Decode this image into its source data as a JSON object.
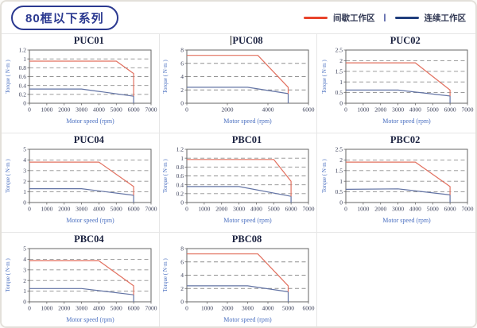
{
  "header": {
    "series_title": "80框以下系列",
    "legend": {
      "separator": "|",
      "items": [
        {
          "label": "间歇工作区",
          "color": "#e8432b"
        },
        {
          "label": "连续工作区",
          "color": "#203e7d"
        }
      ]
    }
  },
  "colors": {
    "line_intermittent": "#e2705f",
    "line_continuous": "#6273a4",
    "gridline": "#8f8f8f",
    "plot_border": "#666666",
    "tick_text": "#3a3f58",
    "axis_label_text": "#4a6fc0",
    "chart_title_text": "#1b2240",
    "accent_navy": "#2b3990"
  },
  "axes_common": {
    "xlabel": "Motor speed (rpm)",
    "ylabel": "Torque ( N·m )"
  },
  "chart_data": [
    {
      "type": "line",
      "title": "PUC01",
      "has_text_cursor": false,
      "xlabel": "Motor speed (rpm)",
      "ylabel": "Torque ( N·m )",
      "xlim": [
        0,
        7000
      ],
      "xticks": [
        0,
        1000,
        2000,
        3000,
        4000,
        5000,
        6000,
        7000
      ],
      "ylim": [
        0,
        1.2
      ],
      "yticks": [
        0,
        0.2,
        0.4,
        0.6,
        0.8,
        1,
        1.2
      ],
      "grid": "horizontal-dashed",
      "legend_position": "none",
      "series": [
        {
          "name": "连续工作区",
          "role": "continuous",
          "points": [
            [
              0,
              0.32
            ],
            [
              3000,
              0.32
            ],
            [
              6000,
              0.16
            ],
            [
              6000,
              0
            ]
          ]
        },
        {
          "name": "间歇工作区",
          "role": "intermittent",
          "points": [
            [
              0,
              0.95
            ],
            [
              5000,
              0.95
            ],
            [
              6000,
              0.67
            ],
            [
              6000,
              0.16
            ]
          ]
        }
      ]
    },
    {
      "type": "line",
      "title": "PUC08",
      "has_text_cursor": true,
      "xlabel": "Motor speed (rpm)",
      "ylabel": "Torque ( N·m )",
      "xlim": [
        0,
        6000
      ],
      "xticks": [
        0,
        2000,
        4000,
        6000
      ],
      "ylim": [
        0,
        8
      ],
      "yticks": [
        0,
        2,
        4,
        6,
        8
      ],
      "grid": "horizontal-dashed",
      "legend_position": "none",
      "series": [
        {
          "name": "连续工作区",
          "role": "continuous",
          "points": [
            [
              0,
              2.4
            ],
            [
              3000,
              2.4
            ],
            [
              5000,
              1.45
            ],
            [
              5000,
              0
            ]
          ]
        },
        {
          "name": "间歇工作区",
          "role": "intermittent",
          "points": [
            [
              0,
              7.2
            ],
            [
              3500,
              7.2
            ],
            [
              5000,
              2.4
            ],
            [
              5000,
              1.45
            ]
          ]
        }
      ]
    },
    {
      "type": "line",
      "title": "PUC02",
      "has_text_cursor": false,
      "xlabel": "Motor speed (rpm)",
      "ylabel": "Torque ( N·m )",
      "xlim": [
        0,
        7000
      ],
      "xticks": [
        0,
        1000,
        2000,
        3000,
        4000,
        5000,
        6000,
        7000
      ],
      "ylim": [
        0,
        2.5
      ],
      "yticks": [
        0,
        0.5,
        1,
        1.5,
        2,
        2.5
      ],
      "grid": "horizontal-dashed",
      "legend_position": "none",
      "series": [
        {
          "name": "连续工作区",
          "role": "continuous",
          "points": [
            [
              0,
              0.62
            ],
            [
              3000,
              0.62
            ],
            [
              6000,
              0.34
            ],
            [
              6000,
              0
            ]
          ]
        },
        {
          "name": "间歇工作区",
          "role": "intermittent",
          "points": [
            [
              0,
              1.9
            ],
            [
              4000,
              1.9
            ],
            [
              6000,
              0.62
            ],
            [
              6000,
              0.34
            ]
          ]
        }
      ]
    },
    {
      "type": "line",
      "title": "PUC04",
      "has_text_cursor": false,
      "xlabel": "Motor speed (rpm)",
      "ylabel": "Torque ( N·m )",
      "xlim": [
        0,
        7000
      ],
      "xticks": [
        0,
        1000,
        2000,
        3000,
        4000,
        5000,
        6000,
        7000
      ],
      "ylim": [
        0,
        5
      ],
      "yticks": [
        0,
        1,
        2,
        3,
        4,
        5
      ],
      "grid": "horizontal-dashed",
      "legend_position": "none",
      "series": [
        {
          "name": "连续工作区",
          "role": "continuous",
          "points": [
            [
              0,
              1.3
            ],
            [
              3000,
              1.3
            ],
            [
              6000,
              0.68
            ],
            [
              6000,
              0
            ]
          ]
        },
        {
          "name": "间歇工作区",
          "role": "intermittent",
          "points": [
            [
              0,
              3.8
            ],
            [
              4000,
              3.8
            ],
            [
              6000,
              1.5
            ],
            [
              6000,
              0.68
            ]
          ]
        }
      ]
    },
    {
      "type": "line",
      "title": "PBC01",
      "has_text_cursor": false,
      "xlabel": "Motor speed (rpm)",
      "ylabel": "Torque ( N·m )",
      "xlim": [
        0,
        7000
      ],
      "xticks": [
        0,
        1000,
        2000,
        3000,
        4000,
        5000,
        6000,
        7000
      ],
      "ylim": [
        0,
        1.2
      ],
      "yticks": [
        0,
        0.2,
        0.4,
        0.6,
        0.8,
        1,
        1.2
      ],
      "grid": "horizontal-dashed",
      "legend_position": "none",
      "series": [
        {
          "name": "连续工作区",
          "role": "continuous",
          "points": [
            [
              0,
              0.36
            ],
            [
              3000,
              0.36
            ],
            [
              6000,
              0.14
            ],
            [
              6000,
              0
            ]
          ]
        },
        {
          "name": "间歇工作区",
          "role": "intermittent",
          "points": [
            [
              0,
              0.97
            ],
            [
              5000,
              0.97
            ],
            [
              6000,
              0.48
            ],
            [
              6000,
              0.14
            ]
          ]
        }
      ]
    },
    {
      "type": "line",
      "title": "PBC02",
      "has_text_cursor": false,
      "xlabel": "Motor speed (rpm)",
      "ylabel": "Torque ( N·m )",
      "xlim": [
        0,
        7000
      ],
      "xticks": [
        0,
        1000,
        2000,
        3000,
        4000,
        5000,
        6000,
        7000
      ],
      "ylim": [
        0,
        2.5
      ],
      "yticks": [
        0,
        0.5,
        1,
        1.5,
        2,
        2.5
      ],
      "grid": "horizontal-dashed",
      "legend_position": "none",
      "series": [
        {
          "name": "连续工作区",
          "role": "continuous",
          "points": [
            [
              0,
              0.62
            ],
            [
              3000,
              0.64
            ],
            [
              6000,
              0.36
            ],
            [
              6000,
              0
            ]
          ]
        },
        {
          "name": "间歇工作区",
          "role": "intermittent",
          "points": [
            [
              0,
              1.9
            ],
            [
              4000,
              1.9
            ],
            [
              6000,
              0.75
            ],
            [
              6000,
              0.36
            ]
          ]
        }
      ]
    },
    {
      "type": "line",
      "title": "PBC04",
      "has_text_cursor": false,
      "xlabel": "Motor speed (rpm)",
      "ylabel": "Torque ( N·m )",
      "xlim": [
        0,
        7000
      ],
      "xticks": [
        0,
        1000,
        2000,
        3000,
        4000,
        5000,
        6000,
        7000
      ],
      "ylim": [
        0,
        5
      ],
      "yticks": [
        0,
        1,
        2,
        3,
        4,
        5
      ],
      "grid": "horizontal-dashed",
      "legend_position": "none",
      "series": [
        {
          "name": "连续工作区",
          "role": "continuous",
          "points": [
            [
              0,
              1.25
            ],
            [
              3000,
              1.25
            ],
            [
              6000,
              0.66
            ],
            [
              6000,
              0
            ]
          ]
        },
        {
          "name": "间歇工作区",
          "role": "intermittent",
          "points": [
            [
              0,
              3.85
            ],
            [
              4000,
              3.85
            ],
            [
              6000,
              1.5
            ],
            [
              6000,
              0.66
            ]
          ]
        }
      ]
    },
    {
      "type": "line",
      "title": "PBC08",
      "has_text_cursor": false,
      "xlabel": "Motor speed (rpm)",
      "ylabel": "Torque ( N·m )",
      "xlim": [
        0,
        6000
      ],
      "xticks": [
        0,
        1000,
        2000,
        3000,
        4000,
        5000,
        6000
      ],
      "ylim": [
        0,
        8
      ],
      "yticks": [
        0,
        2,
        4,
        6,
        8
      ],
      "grid": "horizontal-dashed",
      "legend_position": "none",
      "series": [
        {
          "name": "连续工作区",
          "role": "continuous",
          "points": [
            [
              0,
              2.4
            ],
            [
              3000,
              2.4
            ],
            [
              5000,
              1.5
            ],
            [
              5000,
              0
            ]
          ]
        },
        {
          "name": "间歇工作区",
          "role": "intermittent",
          "points": [
            [
              0,
              7.2
            ],
            [
              3500,
              7.2
            ],
            [
              5000,
              2.4
            ],
            [
              5000,
              1.5
            ]
          ]
        }
      ]
    }
  ]
}
